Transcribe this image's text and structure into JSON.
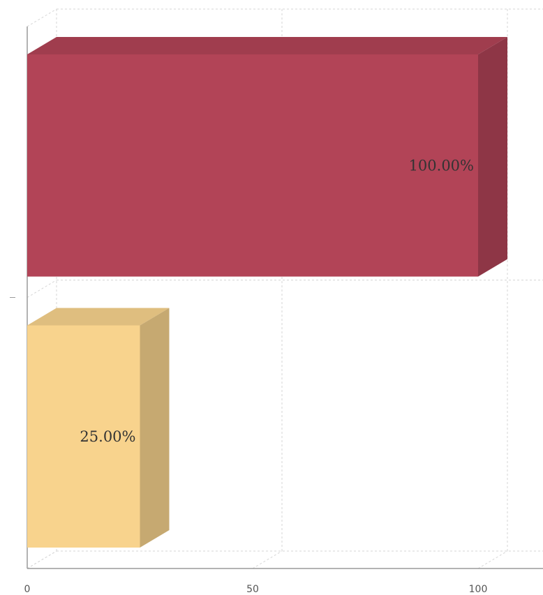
{
  "chart_data": {
    "type": "bar",
    "orientation": "horizontal",
    "style": "3d",
    "categories": [
      "",
      ""
    ],
    "values": [
      100,
      25
    ],
    "data_labels": [
      "100.00%",
      "25.00%"
    ],
    "colors": [
      "#b24457",
      "#f8d38d"
    ],
    "x_ticks": [
      "0",
      "50",
      "100"
    ],
    "xlim": [
      0,
      100
    ],
    "grid": true,
    "legend": "none"
  }
}
